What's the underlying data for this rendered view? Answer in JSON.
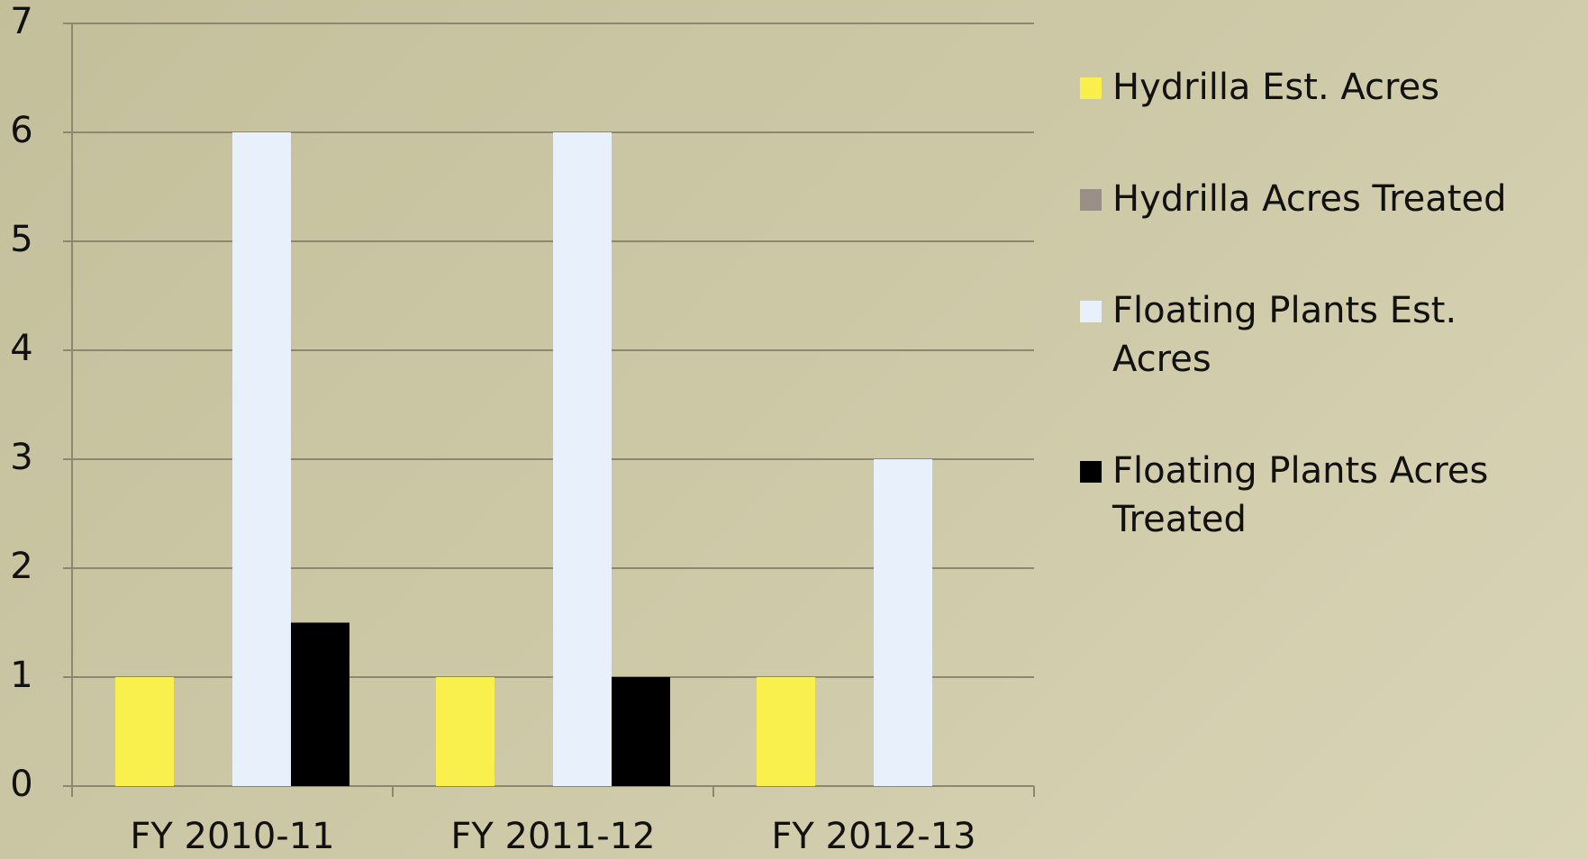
{
  "chart_data": {
    "type": "bar",
    "categories": [
      "FY 2010-11",
      "FY 2011-12",
      "FY 2012-13"
    ],
    "series": [
      {
        "name": "Hydrilla Est. Acres",
        "color": "#f9f04e",
        "values": [
          1,
          1,
          1
        ]
      },
      {
        "name": "Hydrilla Acres Treated",
        "color": "#9a8f86",
        "values": [
          0,
          0,
          0
        ]
      },
      {
        "name": "Floating Plants Est. Acres",
        "color": "#e8f0fb",
        "values": [
          6,
          6,
          3
        ]
      },
      {
        "name": "Floating Plants Acres Treated",
        "color": "#000000",
        "values": [
          1.5,
          1,
          0
        ]
      }
    ],
    "ylim": [
      0,
      7
    ],
    "yticks": [
      0,
      1,
      2,
      3,
      4,
      5,
      6,
      7
    ],
    "grid": true,
    "legend": "right"
  }
}
